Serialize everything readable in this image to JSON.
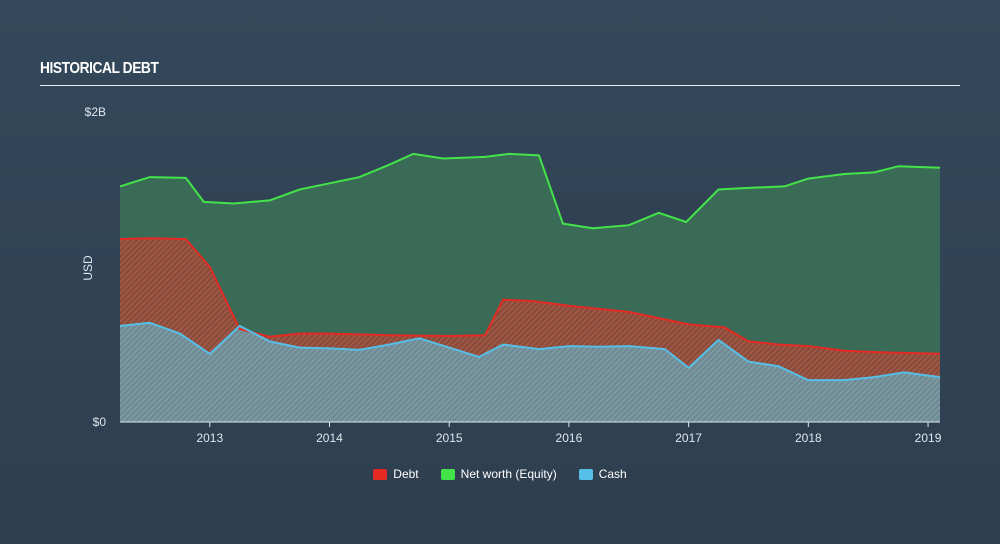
{
  "header": {
    "title": "HISTORICAL DEBT"
  },
  "colors": {
    "debt": "#e52a24",
    "equity": "#43e34a",
    "cash": "#55bfe8",
    "axis": "#dfe6ee"
  },
  "chart_data": {
    "type": "area",
    "title": "HISTORICAL DEBT",
    "ylabel": "USD",
    "xlabel": "",
    "ylim": [
      0,
      2000000000
    ],
    "y_ticks": [
      {
        "value": 0,
        "label": "$0"
      },
      {
        "value": 2000000000,
        "label": "$2B"
      }
    ],
    "x_ticks": [
      {
        "value": 2013,
        "label": "2013"
      },
      {
        "value": 2014,
        "label": "2014"
      },
      {
        "value": 2015,
        "label": "2015"
      },
      {
        "value": 2016,
        "label": "2016"
      },
      {
        "value": 2017,
        "label": "2017"
      },
      {
        "value": 2018,
        "label": "2018"
      },
      {
        "value": 2019,
        "label": "2019"
      }
    ],
    "xlim": [
      2012.25,
      2019.1
    ],
    "grid": false,
    "legend_position": "bottom",
    "series": [
      {
        "name": "Net worth (Equity)",
        "color_key": "equity",
        "points": [
          [
            2012.25,
            1520000000
          ],
          [
            2012.5,
            1580000000
          ],
          [
            2012.8,
            1575000000
          ],
          [
            2012.95,
            1420000000
          ],
          [
            2013.2,
            1410000000
          ],
          [
            2013.5,
            1430000000
          ],
          [
            2013.75,
            1500000000
          ],
          [
            2014.0,
            1540000000
          ],
          [
            2014.25,
            1580000000
          ],
          [
            2014.5,
            1660000000
          ],
          [
            2014.7,
            1730000000
          ],
          [
            2014.95,
            1700000000
          ],
          [
            2015.3,
            1710000000
          ],
          [
            2015.5,
            1730000000
          ],
          [
            2015.75,
            1720000000
          ],
          [
            2015.95,
            1280000000
          ],
          [
            2016.2,
            1250000000
          ],
          [
            2016.5,
            1270000000
          ],
          [
            2016.75,
            1350000000
          ],
          [
            2016.98,
            1290000000
          ],
          [
            2017.25,
            1500000000
          ],
          [
            2017.5,
            1510000000
          ],
          [
            2017.8,
            1520000000
          ],
          [
            2018.0,
            1570000000
          ],
          [
            2018.3,
            1600000000
          ],
          [
            2018.55,
            1610000000
          ],
          [
            2018.75,
            1650000000
          ],
          [
            2019.1,
            1640000000
          ]
        ]
      },
      {
        "name": "Debt",
        "color_key": "debt",
        "points": [
          [
            2012.25,
            1180000000
          ],
          [
            2012.5,
            1185000000
          ],
          [
            2012.8,
            1180000000
          ],
          [
            2013.0,
            1000000000
          ],
          [
            2013.25,
            600000000
          ],
          [
            2013.5,
            550000000
          ],
          [
            2013.75,
            570000000
          ],
          [
            2014.0,
            570000000
          ],
          [
            2014.25,
            565000000
          ],
          [
            2014.5,
            560000000
          ],
          [
            2015.0,
            555000000
          ],
          [
            2015.3,
            560000000
          ],
          [
            2015.45,
            790000000
          ],
          [
            2015.7,
            780000000
          ],
          [
            2016.0,
            750000000
          ],
          [
            2016.25,
            730000000
          ],
          [
            2016.5,
            710000000
          ],
          [
            2016.75,
            670000000
          ],
          [
            2017.0,
            630000000
          ],
          [
            2017.3,
            610000000
          ],
          [
            2017.5,
            520000000
          ],
          [
            2017.75,
            500000000
          ],
          [
            2018.0,
            490000000
          ],
          [
            2018.3,
            460000000
          ],
          [
            2018.6,
            450000000
          ],
          [
            2019.1,
            440000000
          ]
        ]
      },
      {
        "name": "Cash",
        "color_key": "cash",
        "points": [
          [
            2012.25,
            620000000
          ],
          [
            2012.5,
            640000000
          ],
          [
            2012.75,
            570000000
          ],
          [
            2013.0,
            440000000
          ],
          [
            2013.25,
            620000000
          ],
          [
            2013.5,
            520000000
          ],
          [
            2013.75,
            480000000
          ],
          [
            2014.0,
            475000000
          ],
          [
            2014.25,
            465000000
          ],
          [
            2014.5,
            500000000
          ],
          [
            2014.75,
            540000000
          ],
          [
            2015.0,
            480000000
          ],
          [
            2015.25,
            420000000
          ],
          [
            2015.45,
            500000000
          ],
          [
            2015.75,
            470000000
          ],
          [
            2016.0,
            490000000
          ],
          [
            2016.25,
            485000000
          ],
          [
            2016.5,
            490000000
          ],
          [
            2016.8,
            470000000
          ],
          [
            2017.0,
            350000000
          ],
          [
            2017.25,
            530000000
          ],
          [
            2017.5,
            390000000
          ],
          [
            2017.75,
            360000000
          ],
          [
            2018.0,
            270000000
          ],
          [
            2018.3,
            270000000
          ],
          [
            2018.55,
            290000000
          ],
          [
            2018.8,
            320000000
          ],
          [
            2019.1,
            290000000
          ]
        ]
      }
    ]
  }
}
